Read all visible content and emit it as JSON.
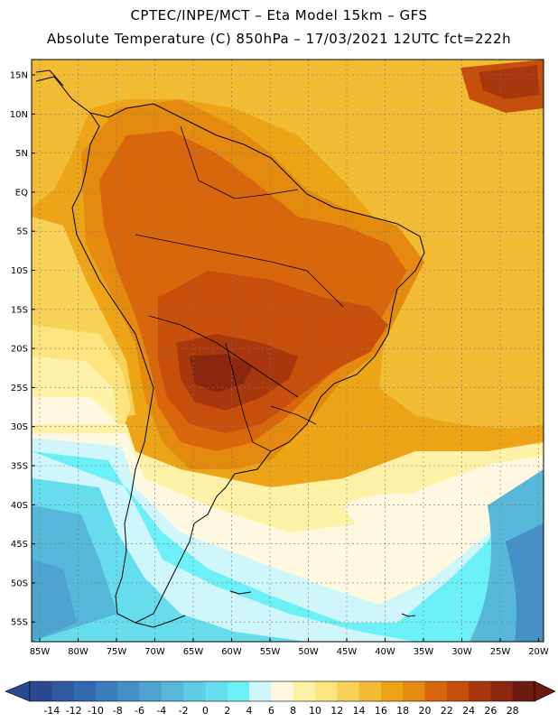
{
  "title_line1": "CPTEC/INPE/MCT –  Eta Model 15km – GFS",
  "title_line2": "Absolute Temperature (C) 850hPa – 17/03/2021 12UTC fct=222h",
  "lat_labels": [
    "15N",
    "10N",
    "5N",
    "EQ",
    "5S",
    "10S",
    "15S",
    "20S",
    "25S",
    "30S",
    "35S",
    "40S",
    "45S",
    "50S",
    "55S"
  ],
  "lon_labels": [
    "85W",
    "80W",
    "75W",
    "70W",
    "65W",
    "60W",
    "55W",
    "50W",
    "45W",
    "40W",
    "35W",
    "30W",
    "25W",
    "20W"
  ],
  "colorbar": {
    "labels": [
      "-14",
      "-12",
      "-10",
      "-8",
      "-6",
      "-4",
      "-2",
      "0",
      "2",
      "4",
      "6",
      "8",
      "10",
      "12",
      "14",
      "16",
      "18",
      "20",
      "22",
      "24",
      "26",
      "28"
    ],
    "colors": [
      "#2a4a8f",
      "#2f5aa2",
      "#3468b0",
      "#3b7cbe",
      "#4590c7",
      "#4ea3cf",
      "#57b7d9",
      "#5fcbe4",
      "#66dded",
      "#6cf0f8",
      "#cff6fb",
      "#fff8e1",
      "#fff2a6",
      "#fde47f",
      "#f8d258",
      "#f2bb34",
      "#eda517",
      "#e48a0e",
      "#d8670c",
      "#c64f0c",
      "#a8380c",
      "#8b270f",
      "#6d1a10"
    ]
  }
}
